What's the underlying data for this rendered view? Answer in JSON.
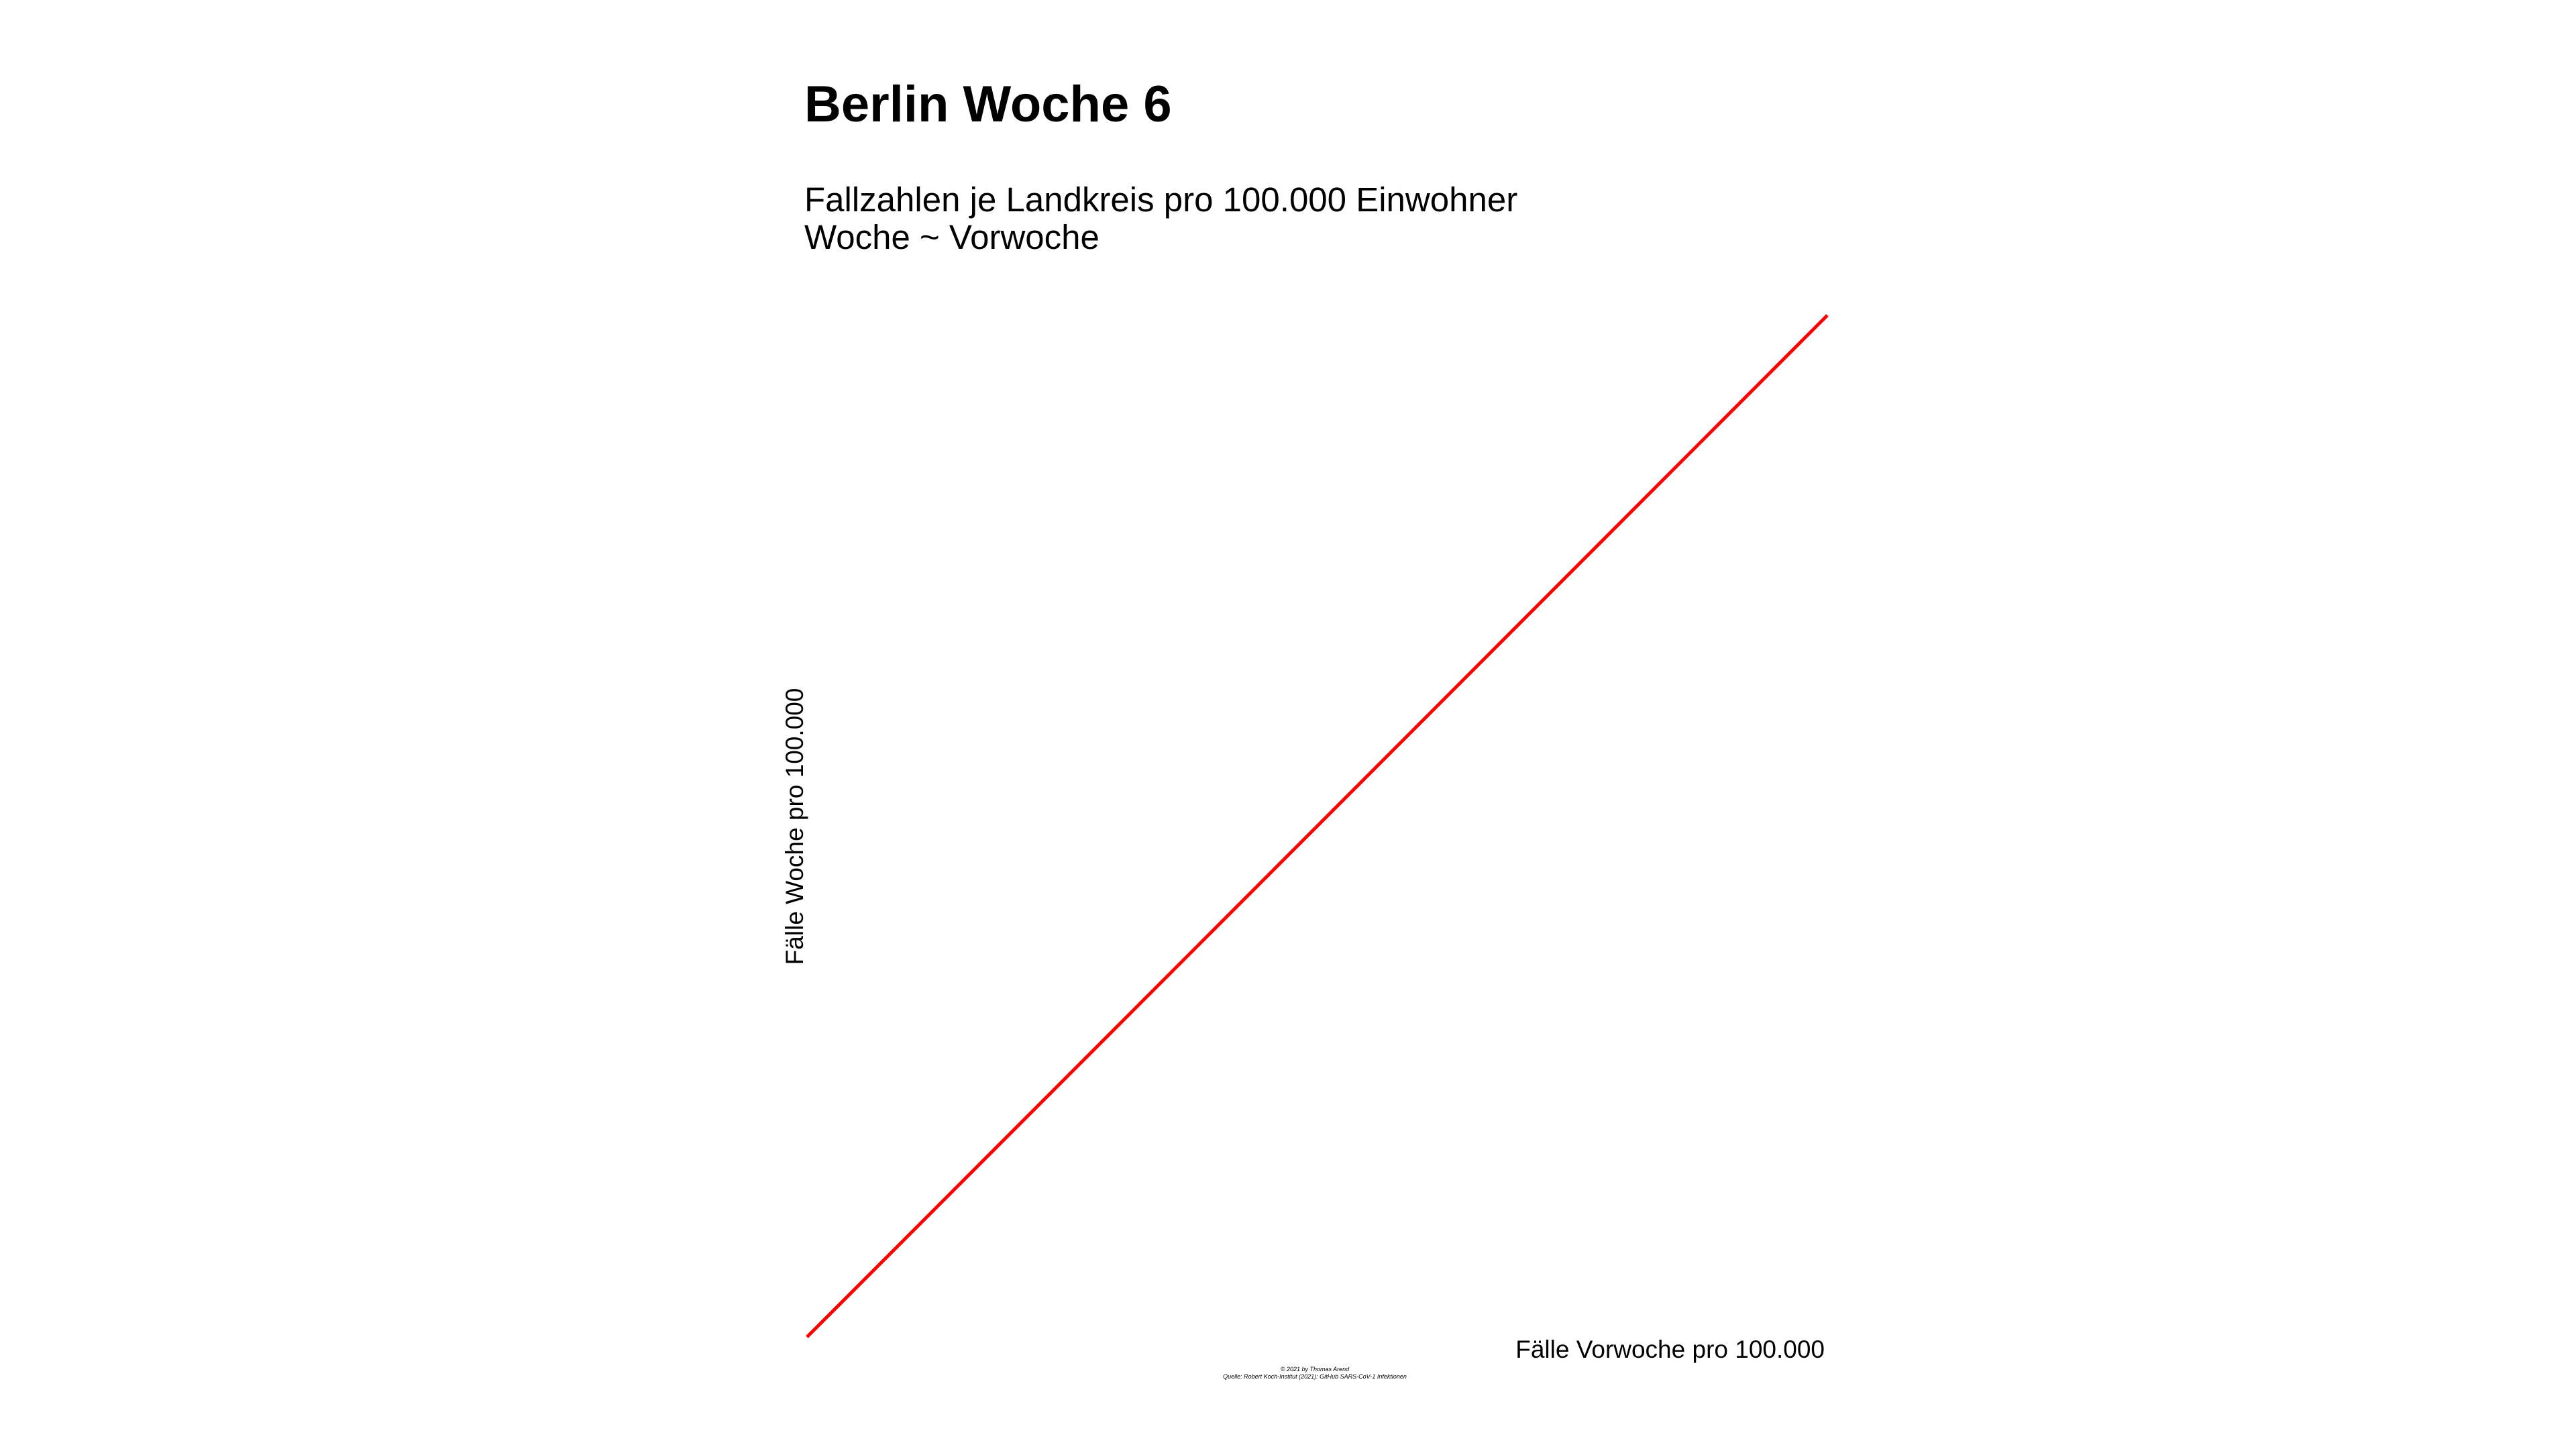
{
  "chart_data": {
    "type": "line",
    "title": "Berlin Woche 6",
    "subtitle_lines": [
      "Fallzahlen je Landkreis pro 100.000 Einwohner",
      "Woche ~ Vorwoche"
    ],
    "xlabel": "Fälle Vorwoche pro 100.000",
    "ylabel": "Fälle Woche pro 100.000",
    "caption_lines": [
      "© 2021 by Thomas Arend",
      "Quelle: Robert Koch-Institut (2021): GitHub SARS-CoV-1 Infektionen"
    ],
    "grid": false,
    "series": [
      {
        "color": "#ff0000",
        "x": [
          0,
          1
        ],
        "y": [
          0,
          1
        ]
      }
    ],
    "xlim": [
      0,
      1
    ],
    "ylim": [
      0,
      1
    ]
  }
}
